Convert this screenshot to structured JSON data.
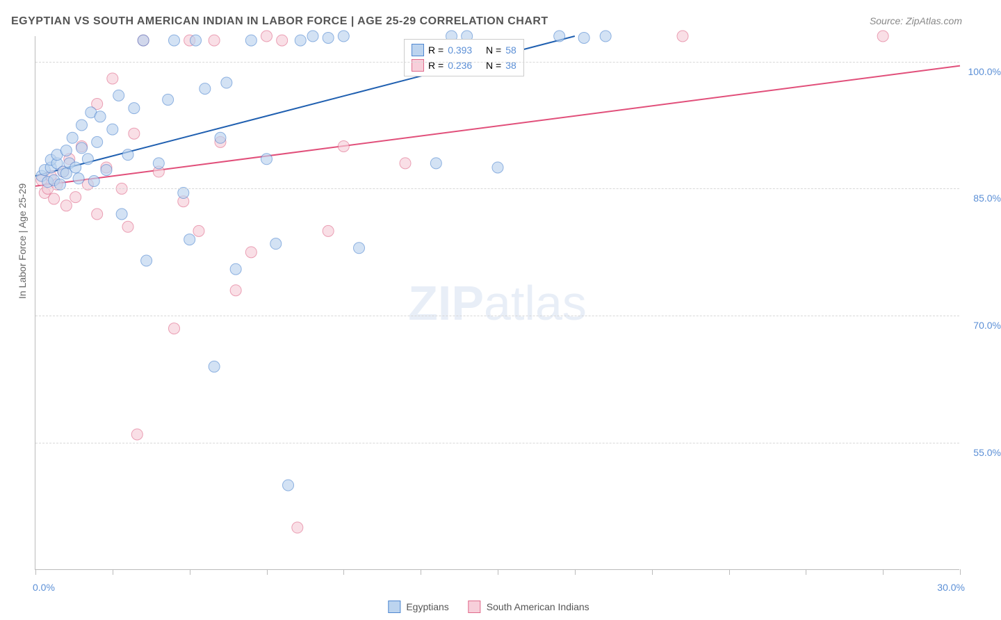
{
  "title": "EGYPTIAN VS SOUTH AMERICAN INDIAN IN LABOR FORCE | AGE 25-29 CORRELATION CHART",
  "source": "Source: ZipAtlas.com",
  "ylabel": "In Labor Force | Age 25-29",
  "watermark_bold": "ZIP",
  "watermark_rest": "atlas",
  "colors": {
    "series1_fill": "#bcd4ef",
    "series1_stroke": "#4f87d1",
    "series2_fill": "#f7cfda",
    "series2_stroke": "#e06b8c",
    "line1": "#1f5fb0",
    "line2": "#e14f7a",
    "axis_text": "#5b8fd6",
    "grid": "#d8d8d8",
    "border": "#bbbbbb",
    "background": "#ffffff"
  },
  "chart": {
    "type": "scatter",
    "xlim": [
      0,
      30
    ],
    "ylim": [
      40,
      103
    ],
    "x_ticks": [
      0,
      2.5,
      5,
      7.5,
      10,
      12.5,
      15,
      17.5,
      20,
      22.5,
      25,
      27.5,
      30
    ],
    "y_gridlines": [
      55,
      70,
      85,
      100
    ],
    "y_tick_labels": [
      "55.0%",
      "70.0%",
      "85.0%",
      "100.0%"
    ],
    "x_axis_labels": {
      "left": "0.0%",
      "right": "30.0%"
    },
    "marker_radius": 8,
    "marker_opacity": 0.65,
    "line_width": 2,
    "regression_lines": {
      "line1": {
        "x1": 0,
        "y1": 86.5,
        "x2": 17.5,
        "y2": 103
      },
      "line2": {
        "x1": 0,
        "y1": 85.3,
        "x2": 30,
        "y2": 99.5
      }
    },
    "series1_name": "Egyptians",
    "series2_name": "South American Indians",
    "series1": [
      [
        0.2,
        86.5
      ],
      [
        0.3,
        87.2
      ],
      [
        0.4,
        85.8
      ],
      [
        0.5,
        87.5
      ],
      [
        0.5,
        88.4
      ],
      [
        0.6,
        86.0
      ],
      [
        0.7,
        88.0
      ],
      [
        0.7,
        89.0
      ],
      [
        0.8,
        85.5
      ],
      [
        0.9,
        87.0
      ],
      [
        1.0,
        89.5
      ],
      [
        1.0,
        86.8
      ],
      [
        1.1,
        88.0
      ],
      [
        1.2,
        91.0
      ],
      [
        1.3,
        87.5
      ],
      [
        1.4,
        86.2
      ],
      [
        1.5,
        89.8
      ],
      [
        1.5,
        92.5
      ],
      [
        1.7,
        88.5
      ],
      [
        1.8,
        94.0
      ],
      [
        1.9,
        85.9
      ],
      [
        2.0,
        90.5
      ],
      [
        2.1,
        93.5
      ],
      [
        2.3,
        87.2
      ],
      [
        2.5,
        92.0
      ],
      [
        2.7,
        96.0
      ],
      [
        2.8,
        82.0
      ],
      [
        3.0,
        89.0
      ],
      [
        3.2,
        94.5
      ],
      [
        3.5,
        102.5
      ],
      [
        3.6,
        76.5
      ],
      [
        4.0,
        88.0
      ],
      [
        4.3,
        95.5
      ],
      [
        4.5,
        102.5
      ],
      [
        4.8,
        84.5
      ],
      [
        5.0,
        79.0
      ],
      [
        5.2,
        102.5
      ],
      [
        5.5,
        96.8
      ],
      [
        5.8,
        64.0
      ],
      [
        6.0,
        91.0
      ],
      [
        6.2,
        97.5
      ],
      [
        6.5,
        75.5
      ],
      [
        7.0,
        102.5
      ],
      [
        7.5,
        88.5
      ],
      [
        7.8,
        78.5
      ],
      [
        8.2,
        50.0
      ],
      [
        8.6,
        102.5
      ],
      [
        9.0,
        103.0
      ],
      [
        9.5,
        102.8
      ],
      [
        10.0,
        103.0
      ],
      [
        10.5,
        78.0
      ],
      [
        13.5,
        103.0
      ],
      [
        14.0,
        103.0
      ],
      [
        15.0,
        87.5
      ],
      [
        17.0,
        103.0
      ],
      [
        17.8,
        102.8
      ],
      [
        18.5,
        103.0
      ],
      [
        13.0,
        88.0
      ]
    ],
    "series2": [
      [
        0.2,
        86.0
      ],
      [
        0.3,
        84.5
      ],
      [
        0.4,
        85.0
      ],
      [
        0.5,
        86.5
      ],
      [
        0.6,
        83.8
      ],
      [
        0.7,
        85.5
      ],
      [
        0.9,
        87.0
      ],
      [
        1.0,
        83.0
      ],
      [
        1.1,
        88.5
      ],
      [
        1.3,
        84.0
      ],
      [
        1.5,
        90.0
      ],
      [
        1.7,
        85.5
      ],
      [
        2.0,
        95.0
      ],
      [
        2.0,
        82.0
      ],
      [
        2.3,
        87.5
      ],
      [
        2.5,
        98.0
      ],
      [
        2.8,
        85.0
      ],
      [
        3.0,
        80.5
      ],
      [
        3.2,
        91.5
      ],
      [
        3.3,
        56.0
      ],
      [
        3.5,
        102.5
      ],
      [
        4.0,
        87.0
      ],
      [
        4.5,
        68.5
      ],
      [
        4.8,
        83.5
      ],
      [
        5.0,
        102.5
      ],
      [
        5.3,
        80.0
      ],
      [
        5.8,
        102.5
      ],
      [
        6.0,
        90.5
      ],
      [
        6.5,
        73.0
      ],
      [
        7.0,
        77.5
      ],
      [
        7.5,
        103.0
      ],
      [
        8.0,
        102.5
      ],
      [
        8.5,
        45.0
      ],
      [
        9.5,
        80.0
      ],
      [
        10.0,
        90.0
      ],
      [
        12.0,
        88.0
      ],
      [
        21.0,
        103.0
      ],
      [
        27.5,
        103.0
      ]
    ]
  },
  "stats_legend": {
    "row1": {
      "R_label": "R =",
      "R_val": "0.393",
      "N_label": "N =",
      "N_val": "58"
    },
    "row2": {
      "R_label": "R =",
      "R_val": "0.236",
      "N_label": "N =",
      "N_val": "38"
    }
  }
}
